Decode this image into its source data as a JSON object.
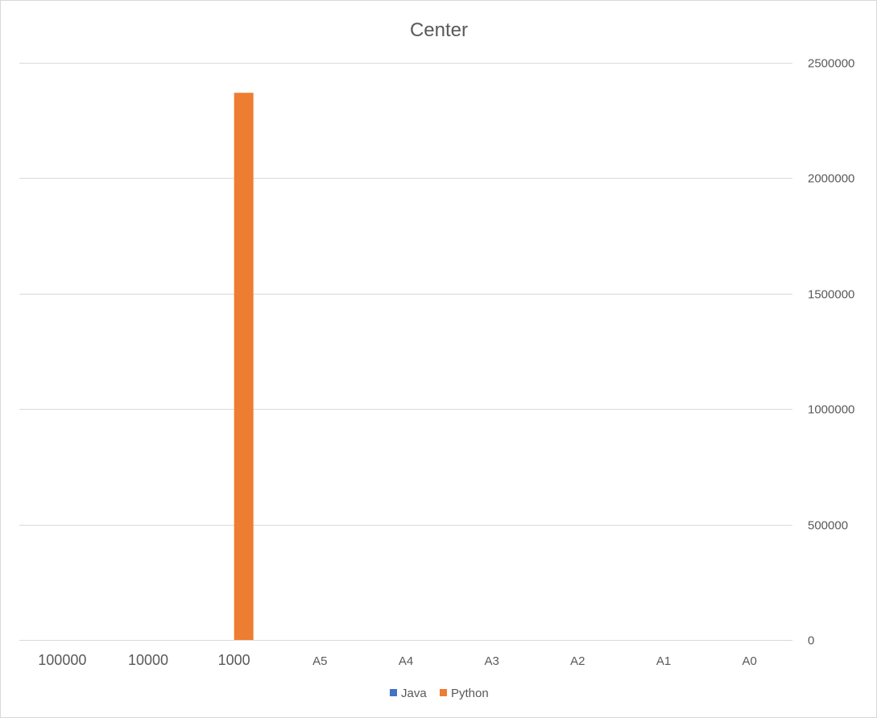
{
  "chart_data": {
    "type": "bar",
    "title": "Center",
    "xlabel": "",
    "ylabel": "",
    "categories": [
      "100000",
      "10000",
      "1000",
      "A5",
      "A4",
      "A3",
      "A2",
      "A1",
      "A0"
    ],
    "series": [
      {
        "name": "Java",
        "color": "#4472c4",
        "values": [
          0,
          0,
          0,
          0,
          0,
          0,
          0,
          0,
          0
        ]
      },
      {
        "name": "Python",
        "color": "#ed7d31",
        "values": [
          0,
          0,
          2370000,
          0,
          0,
          0,
          0,
          0,
          0
        ]
      }
    ],
    "ylim": [
      0,
      2500000
    ],
    "yticks": [
      "0",
      "500000",
      "1000000",
      "1500000",
      "2000000",
      "2500000"
    ],
    "yaxis_position": "right",
    "grid": true,
    "legend_position": "bottom"
  }
}
